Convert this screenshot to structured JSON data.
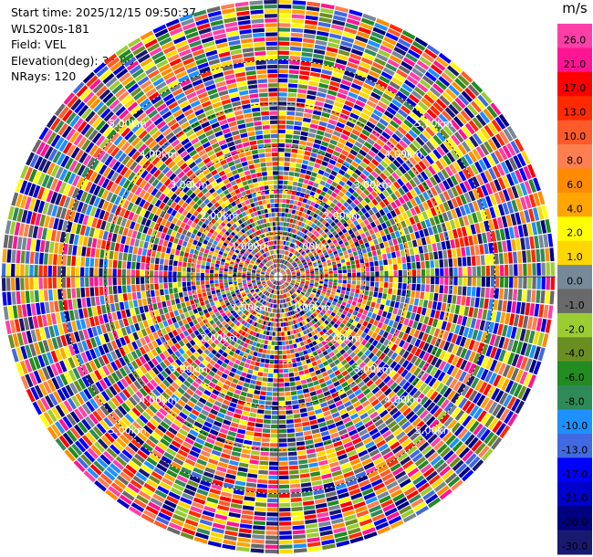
{
  "info": {
    "start_time": "Start time: 2025/12/15 09:50:37",
    "instrument": "WLS200s-181",
    "field": "Field: VEL",
    "elevation": "Elevation(deg): 35.00",
    "nrays": "NRays: 120"
  },
  "chart_data": {
    "type": "heatmap",
    "projection": "polar-ppi",
    "field": "VEL",
    "elevation_deg": 35.0,
    "nrays": 120,
    "unit": "m/s",
    "range_rings_km": [
      1.0,
      2.0,
      3.0,
      4.0,
      5.0
    ],
    "ring_label_text": [
      "1.00km",
      "2.00km",
      "3.00km",
      "4.00km",
      "5.00km"
    ],
    "max_range_km": 6.4,
    "colorbar": {
      "ticks": [
        "26.0",
        "21.0",
        "17.0",
        "13.0",
        "10.0",
        "8.0",
        "6.0",
        "4.0",
        "2.0",
        "1.0",
        "0.0",
        "-1.0",
        "-2.0",
        "-4.0",
        "-6.0",
        "-8.0",
        "-10.0",
        "-13.0",
        "-17.0",
        "-21.0",
        "-26.0",
        "-30.0"
      ],
      "colors": [
        "#ff3fa8",
        "#ff1493",
        "#ff0000",
        "#ff2a00",
        "#ff5a2a",
        "#ff7f50",
        "#ff8c00",
        "#ffa500",
        "#ffff00",
        "#ffd700",
        "#778899",
        "#696969",
        "#9acd32",
        "#6b8e23",
        "#228b22",
        "#2e8b57",
        "#1e90ff",
        "#4169e1",
        "#0000ff",
        "#0000cd",
        "#000080",
        "#191970"
      ]
    }
  }
}
